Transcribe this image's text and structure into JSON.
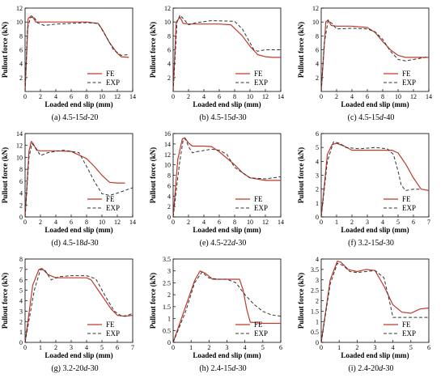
{
  "colors": {
    "fe": "#c0392b",
    "exp": "#333333"
  },
  "chart_data": [
    {
      "type": "line",
      "caption": "(a) 4.5-15d-20",
      "xlabel": "Loaded end slip (mm)",
      "ylabel": "Pullout force (kN)",
      "xlim": [
        0,
        14
      ],
      "ylim": [
        0,
        12
      ],
      "xticks": [
        0,
        2,
        4,
        6,
        8,
        10,
        12,
        14
      ],
      "yticks": [
        2,
        4,
        6,
        8,
        10,
        12
      ],
      "series": [
        {
          "name": "FE",
          "style": "solid",
          "x": [
            0,
            0.4,
            0.8,
            1.0,
            1.4,
            2,
            4,
            8,
            9.5,
            10,
            11,
            12,
            12.5,
            13.5
          ],
          "y": [
            0,
            10.5,
            10.9,
            10.7,
            10.0,
            10.0,
            10.0,
            10.0,
            9.8,
            9.0,
            7.0,
            5.5,
            5.0,
            4.9
          ]
        },
        {
          "name": "EXP",
          "style": "dashed",
          "x": [
            0,
            0.3,
            0.7,
            1.1,
            1.6,
            2.5,
            4,
            6,
            8,
            9.5,
            10.5,
            11.5,
            12.5,
            13.5
          ],
          "y": [
            0,
            9.0,
            10.6,
            10.8,
            9.9,
            9.5,
            9.7,
            9.8,
            9.9,
            9.8,
            8.0,
            6.0,
            5.2,
            5.3
          ]
        }
      ]
    },
    {
      "type": "line",
      "caption": "(b) 4.5-15d-30",
      "xlabel": "Loaded end slip (mm)",
      "ylabel": "Pullout force (kN)",
      "xlim": [
        0,
        14
      ],
      "ylim": [
        0,
        12
      ],
      "xticks": [
        0,
        2,
        4,
        6,
        8,
        10,
        12,
        14
      ],
      "yticks": [
        2,
        4,
        6,
        8,
        10,
        12
      ],
      "series": [
        {
          "name": "FE",
          "style": "solid",
          "x": [
            0,
            0.4,
            0.9,
            1.3,
            2,
            4,
            6,
            7.5,
            9,
            10,
            11,
            12,
            13,
            14
          ],
          "y": [
            0,
            10.0,
            10.7,
            9.8,
            9.7,
            9.7,
            9.7,
            9.6,
            8.0,
            6.5,
            5.3,
            5.0,
            4.9,
            4.9
          ]
        },
        {
          "name": "EXP",
          "style": "dashed",
          "x": [
            0,
            0.5,
            0.9,
            1.3,
            2,
            3,
            5,
            8,
            9,
            10,
            10.5,
            11,
            12,
            14
          ],
          "y": [
            0,
            10.0,
            11.0,
            10.5,
            9.6,
            9.9,
            10.2,
            10.1,
            9.0,
            7.0,
            6.0,
            5.8,
            6.0,
            6.0
          ]
        }
      ]
    },
    {
      "type": "line",
      "caption": "(c) 4.5-15d-40",
      "xlabel": "Loaded end slip (mm)",
      "ylabel": "Pullout force (kN)",
      "xlim": [
        0,
        14
      ],
      "ylim": [
        0,
        12
      ],
      "xticks": [
        0,
        2,
        4,
        6,
        8,
        10,
        12,
        14
      ],
      "yticks": [
        2,
        4,
        6,
        8,
        10,
        12
      ],
      "series": [
        {
          "name": "FE",
          "style": "solid",
          "x": [
            0,
            0.6,
            0.9,
            1.3,
            2,
            4,
            6,
            7,
            8,
            9,
            10,
            11,
            12,
            14
          ],
          "y": [
            0,
            10.0,
            10.3,
            9.5,
            9.4,
            9.4,
            9.2,
            8.5,
            7.2,
            6.0,
            5.2,
            4.9,
            4.9,
            4.9
          ]
        },
        {
          "name": "EXP",
          "style": "dashed",
          "x": [
            0,
            0.4,
            0.9,
            1.4,
            2,
            4,
            6,
            7,
            8,
            9,
            10,
            11,
            12,
            14
          ],
          "y": [
            0,
            7.0,
            10.2,
            9.8,
            9.0,
            9.1,
            9.0,
            8.6,
            7.5,
            5.8,
            4.6,
            4.4,
            4.6,
            5.0
          ]
        }
      ]
    },
    {
      "type": "line",
      "caption": "(d) 4.5-18d-30",
      "xlabel": "Loaded end slip (mm)",
      "ylabel": "Pullout force (kN)",
      "xlim": [
        0,
        14
      ],
      "ylim": [
        0,
        14
      ],
      "xticks": [
        0,
        2,
        4,
        6,
        8,
        10,
        12,
        14
      ],
      "yticks": [
        0,
        2,
        4,
        6,
        8,
        10,
        12,
        14
      ],
      "series": [
        {
          "name": "FE",
          "style": "solid",
          "x": [
            0,
            0.5,
            0.8,
            1.0,
            1.5,
            2,
            4,
            6,
            8,
            9,
            10,
            11,
            12,
            13
          ],
          "y": [
            0,
            11.0,
            12.7,
            12.4,
            11.2,
            11.1,
            11.1,
            11.0,
            9.8,
            8.5,
            7.0,
            5.8,
            5.7,
            5.7
          ]
        },
        {
          "name": "EXP",
          "style": "dashed",
          "x": [
            0,
            0.5,
            0.9,
            1.3,
            2,
            3,
            5,
            7,
            8,
            9,
            10,
            11,
            12,
            14
          ],
          "y": [
            0,
            10.0,
            12.3,
            11.8,
            10.3,
            10.8,
            11.2,
            10.8,
            8.5,
            6.0,
            3.9,
            3.6,
            4.0,
            4.9
          ]
        }
      ]
    },
    {
      "type": "line",
      "caption": "(e) 4.5-22d-30",
      "xlabel": "Loaded end slip (mm)",
      "ylabel": "Pullout force (kN)",
      "xlim": [
        0,
        14
      ],
      "ylim": [
        0,
        16
      ],
      "xticks": [
        0,
        2,
        4,
        6,
        8,
        10,
        12,
        14
      ],
      "yticks": [
        0,
        2,
        4,
        6,
        8,
        10,
        12,
        14,
        16
      ],
      "series": [
        {
          "name": "FE",
          "style": "solid",
          "x": [
            0,
            0.6,
            1.2,
            1.5,
            2,
            2.5,
            4,
            5,
            6,
            8,
            9,
            10,
            12,
            14
          ],
          "y": [
            0,
            11.0,
            15.0,
            15.2,
            14.2,
            13.6,
            13.6,
            13.5,
            12.5,
            10.0,
            8.5,
            7.5,
            7.0,
            7.0
          ]
        },
        {
          "name": "EXP",
          "style": "dashed",
          "x": [
            0,
            0.8,
            1.3,
            1.6,
            2,
            2.5,
            3,
            5,
            6,
            7,
            8,
            10,
            12,
            14
          ],
          "y": [
            0,
            10.0,
            14.8,
            15.0,
            13.5,
            12.3,
            12.5,
            13.0,
            12.8,
            12.0,
            9.5,
            7.5,
            7.3,
            7.7
          ]
        }
      ]
    },
    {
      "type": "line",
      "caption": "(f) 3.2-15d-30",
      "xlabel": "Loaded end slip (mm)",
      "ylabel": "Pullout force (kN)",
      "xlim": [
        0,
        7
      ],
      "ylim": [
        0,
        6
      ],
      "xticks": [
        0,
        1,
        2,
        3,
        4,
        5,
        6,
        7
      ],
      "yticks": [
        0,
        1,
        2,
        3,
        4,
        5,
        6
      ],
      "series": [
        {
          "name": "FE",
          "style": "solid",
          "x": [
            0,
            0.4,
            0.7,
            1.0,
            1.5,
            2,
            3,
            4,
            4.6,
            5.0,
            5.5,
            6.0,
            6.5,
            7.0
          ],
          "y": [
            0,
            4.5,
            5.2,
            5.3,
            5.1,
            4.8,
            4.8,
            4.8,
            4.8,
            4.6,
            3.8,
            2.8,
            2.0,
            1.9
          ]
        },
        {
          "name": "EXP",
          "style": "dashed",
          "x": [
            0,
            0.4,
            0.8,
            1.2,
            1.6,
            2.5,
            3.5,
            4.3,
            4.7,
            5.0,
            5.2,
            5.5,
            6.0,
            6.5
          ],
          "y": [
            0,
            4.0,
            5.4,
            5.3,
            5.0,
            4.9,
            5.0,
            4.9,
            4.5,
            3.3,
            2.3,
            1.9,
            2.0,
            2.0
          ]
        }
      ]
    },
    {
      "type": "line",
      "caption": "(g) 3.2-20d-30",
      "xlabel": "Loaded end slip (mm)",
      "ylabel": "Pullout force (kN)",
      "xlim": [
        0,
        7
      ],
      "ylim": [
        0,
        8
      ],
      "xticks": [
        0,
        1,
        2,
        3,
        4,
        5,
        6,
        7
      ],
      "yticks": [
        0,
        1,
        2,
        3,
        4,
        5,
        6,
        7,
        8
      ],
      "series": [
        {
          "name": "FE",
          "style": "solid",
          "x": [
            0,
            0.5,
            0.9,
            1.1,
            1.5,
            2,
            3,
            4,
            4.3,
            5.0,
            5.6,
            6.0,
            6.5,
            7.0
          ],
          "y": [
            0,
            5.5,
            7.0,
            7.1,
            6.5,
            6.2,
            6.2,
            6.2,
            6.0,
            4.5,
            3.2,
            2.6,
            2.5,
            2.6
          ]
        },
        {
          "name": "EXP",
          "style": "dashed",
          "x": [
            0,
            0.6,
            1.0,
            1.3,
            1.7,
            2.2,
            3,
            4,
            4.6,
            5.2,
            5.8,
            6.3,
            6.7,
            7.0
          ],
          "y": [
            0,
            5.0,
            7.0,
            6.9,
            6.0,
            6.3,
            6.4,
            6.4,
            6.1,
            4.5,
            3.0,
            2.5,
            2.6,
            2.8
          ]
        }
      ]
    },
    {
      "type": "line",
      "caption": "(h) 2.4-15d-30",
      "xlabel": "Loaded end slip (mm)",
      "ylabel": "Pullout force (kN)",
      "xlim": [
        0,
        6
      ],
      "ylim": [
        0,
        3.5
      ],
      "xticks": [
        0,
        1,
        2,
        3,
        4,
        5,
        6
      ],
      "yticks": [
        0,
        0.5,
        1.0,
        1.5,
        2.0,
        2.5,
        3.0,
        3.5
      ],
      "series": [
        {
          "name": "FE",
          "style": "solid",
          "x": [
            0,
            0.6,
            1.2,
            1.5,
            1.8,
            2.2,
            3,
            3.7,
            3.9,
            4.1,
            4.3,
            5,
            6
          ],
          "y": [
            0,
            1.3,
            2.6,
            3.0,
            2.9,
            2.65,
            2.65,
            2.65,
            2.2,
            1.4,
            0.85,
            0.8,
            0.8
          ]
        },
        {
          "name": "EXP",
          "style": "dashed",
          "x": [
            0,
            0.7,
            1.2,
            1.6,
            2.0,
            2.5,
            3,
            3.5,
            4.0,
            4.5,
            5.0,
            5.5,
            6
          ],
          "y": [
            0,
            1.3,
            2.5,
            2.95,
            2.7,
            2.65,
            2.65,
            2.5,
            2.0,
            1.6,
            1.3,
            1.15,
            1.1
          ]
        }
      ]
    },
    {
      "type": "line",
      "caption": "(i) 2.4-20d-30",
      "xlabel": "Loaded end slip (mm)",
      "ylabel": "Pullout force (kN)",
      "xlim": [
        0,
        6
      ],
      "ylim": [
        0,
        4.0
      ],
      "xticks": [
        0,
        1,
        2,
        3,
        4,
        5,
        6
      ],
      "yticks": [
        0,
        0.5,
        1.0,
        1.5,
        2.0,
        2.5,
        3.0,
        3.5,
        4.0
      ],
      "series": [
        {
          "name": "FE",
          "style": "solid",
          "x": [
            0,
            0.5,
            0.9,
            1.1,
            1.5,
            2,
            2.5,
            3.0,
            3.5,
            4.0,
            4.5,
            5.0,
            5.5,
            6.0
          ],
          "y": [
            0,
            3.0,
            3.9,
            3.85,
            3.5,
            3.4,
            3.5,
            3.45,
            2.7,
            1.8,
            1.45,
            1.4,
            1.6,
            1.65
          ]
        },
        {
          "name": "EXP",
          "style": "dashed",
          "x": [
            0,
            0.5,
            0.9,
            1.2,
            1.6,
            2,
            2.5,
            3.0,
            3.5,
            3.8,
            4.0,
            4.5,
            5.0,
            6.0
          ],
          "y": [
            0,
            2.8,
            3.8,
            3.7,
            3.4,
            3.35,
            3.4,
            3.45,
            3.1,
            2.0,
            1.2,
            1.2,
            1.2,
            1.2
          ]
        }
      ]
    }
  ]
}
